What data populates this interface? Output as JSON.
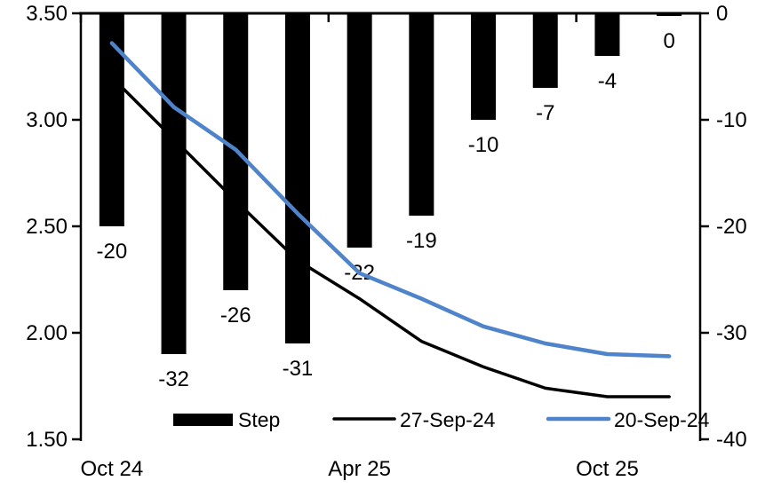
{
  "chart_data": {
    "type": "combo_bar_line",
    "title": "",
    "categories": [
      "Oct 24",
      "",
      "",
      "",
      "Apr 25",
      "",
      "",
      "",
      "Oct 25",
      ""
    ],
    "x_label_indices": [
      0,
      4,
      8
    ],
    "x_boundary_tick_indices": [
      0,
      4,
      8
    ],
    "bar_series": {
      "name": "Step",
      "axis": "right",
      "color": "#000000",
      "values": [
        -20,
        -32,
        -26,
        -31,
        -22,
        -19,
        -10,
        -7,
        -4,
        0
      ],
      "data_labels": [
        "-20",
        "-32",
        "-26",
        "-31",
        "-22",
        "-19",
        "-10",
        "-7",
        "-4",
        "0"
      ]
    },
    "line_series": [
      {
        "name": "27-Sep-24",
        "axis": "left",
        "color": "#000000",
        "stroke_width": 3.5,
        "values": [
          3.2,
          2.91,
          2.62,
          2.34,
          2.16,
          1.96,
          1.84,
          1.74,
          1.7,
          1.7
        ]
      },
      {
        "name": "20-Sep-24",
        "axis": "left",
        "color": "#4f84ca",
        "stroke_width": 4.5,
        "values": [
          3.36,
          3.06,
          2.86,
          2.56,
          2.28,
          2.16,
          2.03,
          1.95,
          1.9,
          1.89
        ]
      }
    ],
    "left_axis": {
      "min": 1.5,
      "max": 3.5,
      "tick_labels": [
        "3.50",
        "3.00",
        "2.50",
        "2.00",
        "1.50"
      ],
      "tick_values": [
        3.5,
        3.0,
        2.5,
        2.0,
        1.5
      ]
    },
    "right_axis": {
      "min": -40,
      "max": 0,
      "tick_labels": [
        "0",
        "-10",
        "-20",
        "-30",
        "-40"
      ],
      "tick_values": [
        0,
        -10,
        -20,
        -30,
        -40
      ]
    },
    "legend": [
      {
        "swatch": "bar",
        "color": "#000000",
        "label": "Step"
      },
      {
        "swatch": "line",
        "color": "#000000",
        "label": "27-Sep-24"
      },
      {
        "swatch": "line",
        "color": "#4f84ca",
        "label": "20-Sep-24"
      }
    ],
    "grid": false,
    "legend_position": "bottom-inside",
    "background": "#ffffff",
    "axis_color": "#000000"
  }
}
